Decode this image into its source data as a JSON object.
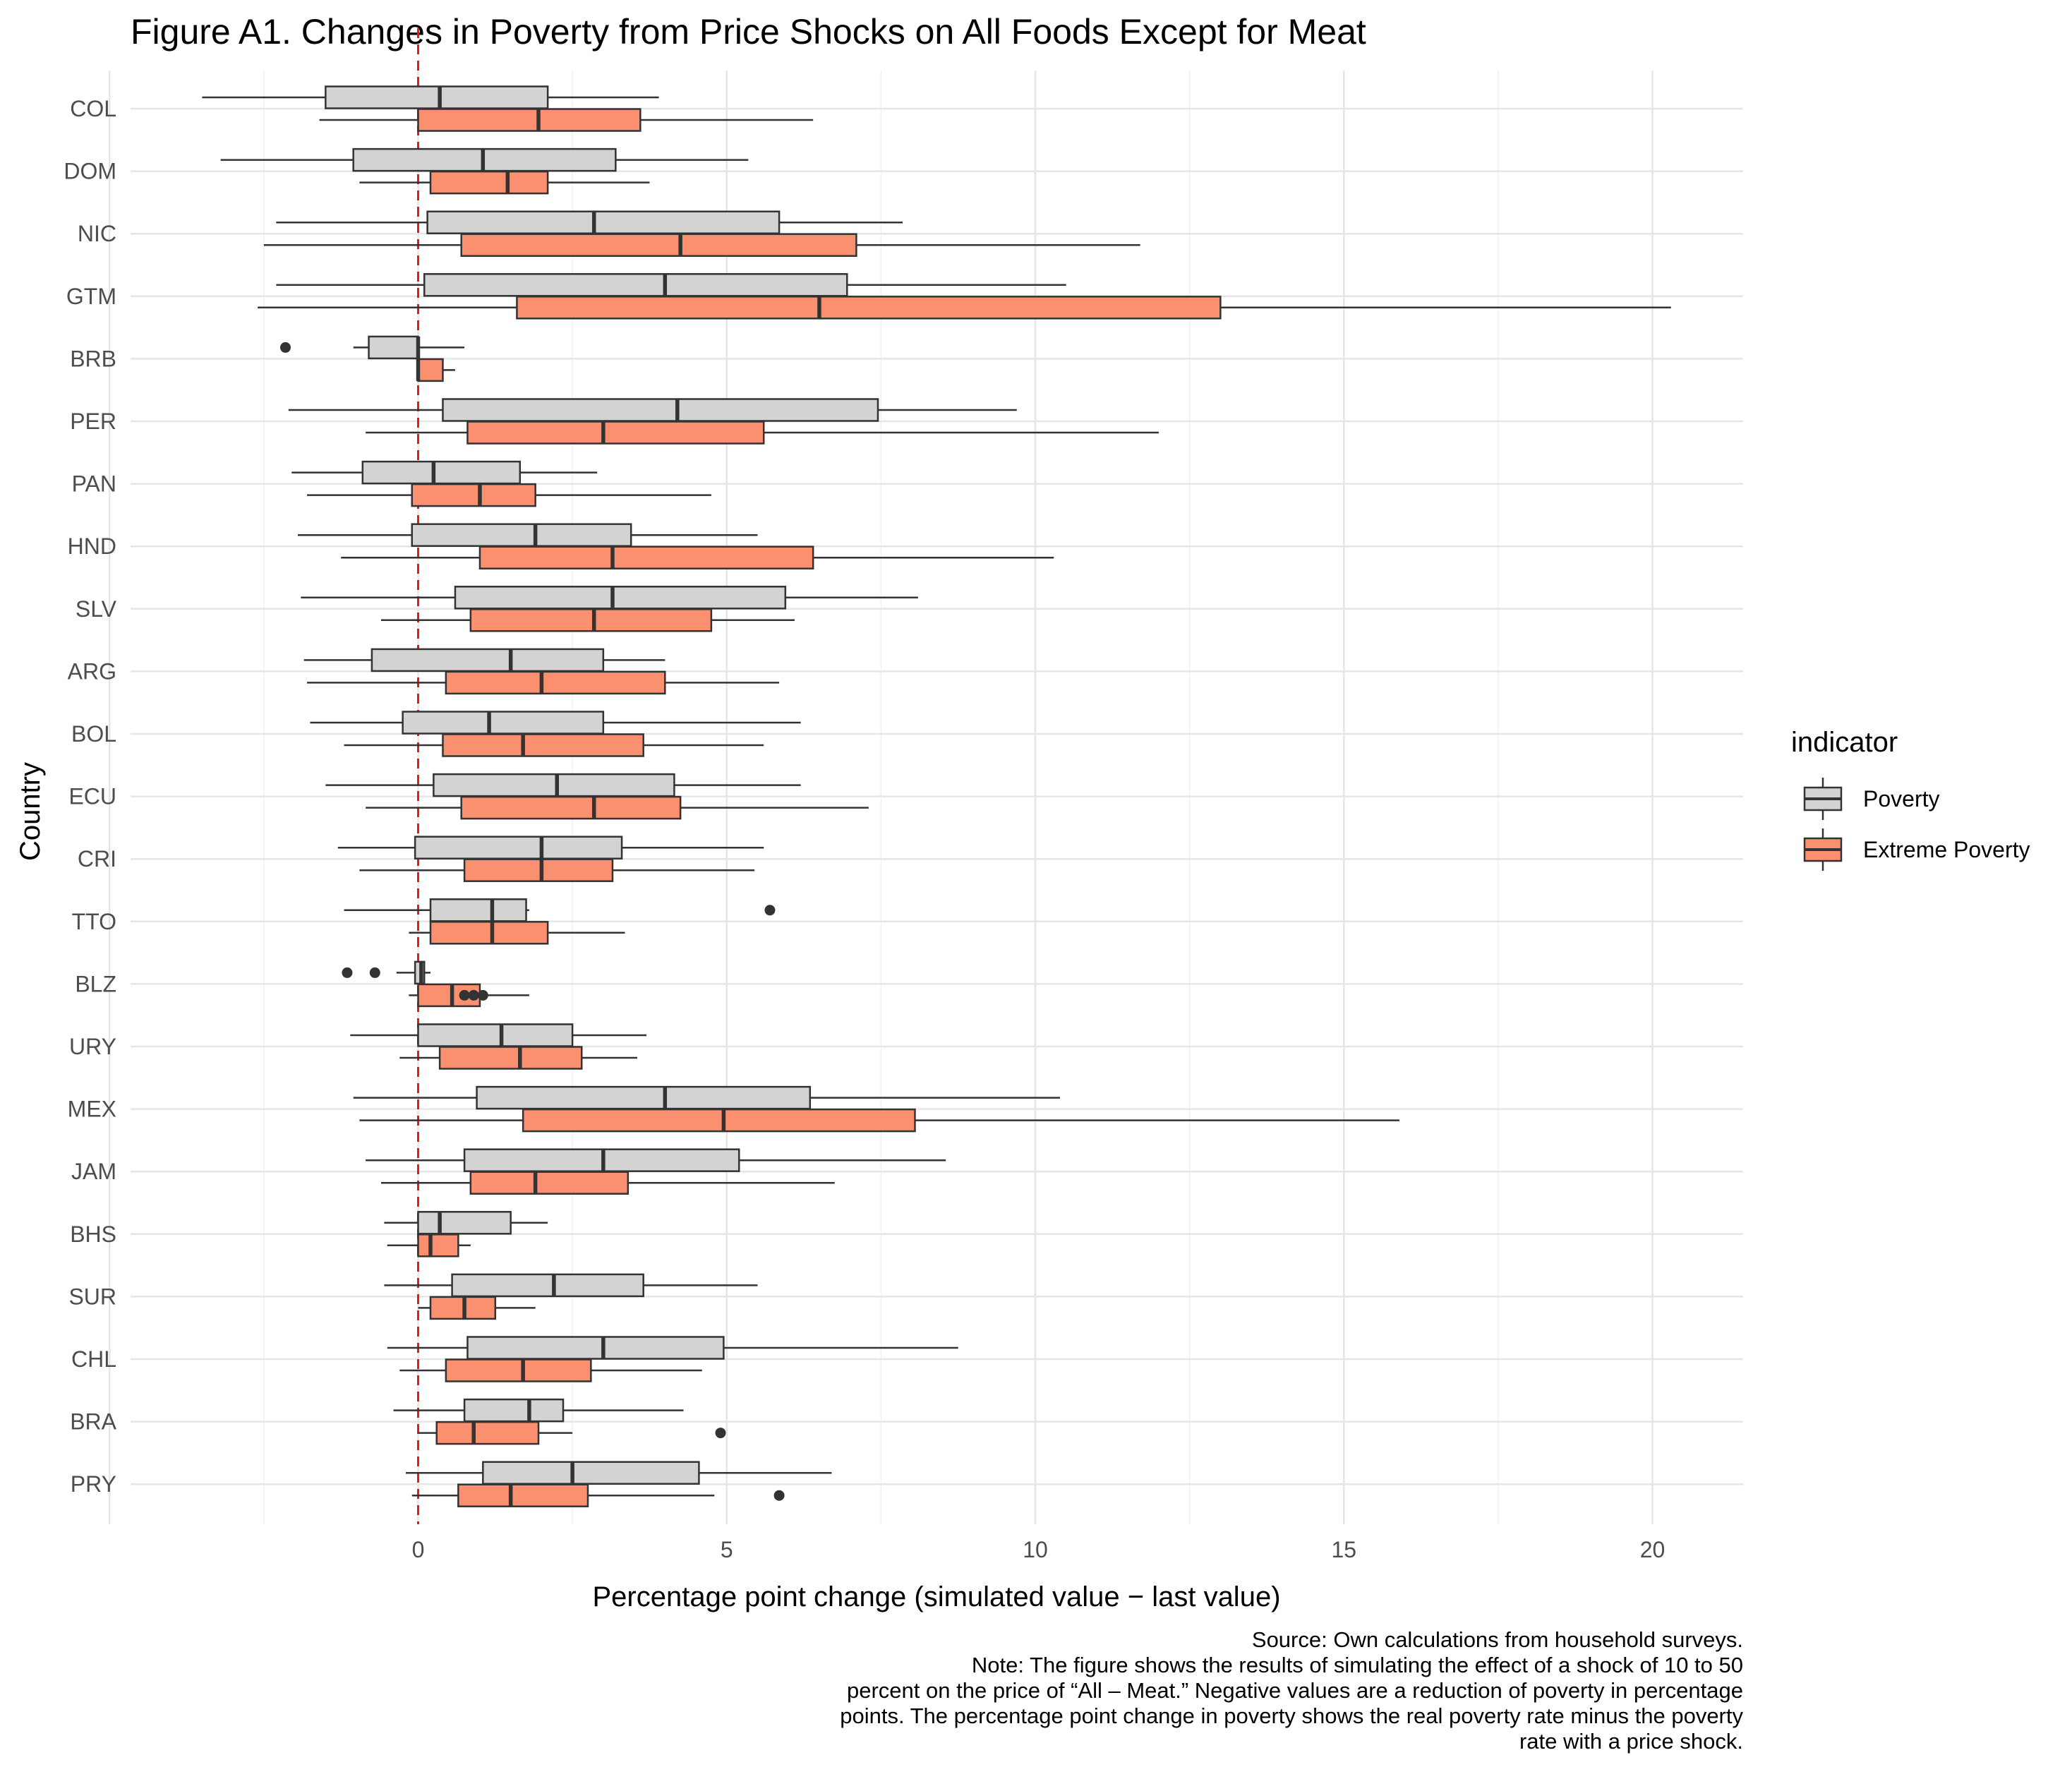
{
  "chart_data": {
    "type": "boxplot",
    "orientation": "horizontal",
    "title": "Figure A1. Changes in Poverty from Price Shocks on All Foods Except for Meat",
    "xlabel": "Percentage point change (simulated value − last value)",
    "ylabel": "Country",
    "xlim": [
      -9.3,
      21.5
    ],
    "xticks": [
      0,
      5,
      10,
      15,
      20
    ],
    "grid": true,
    "reference_line": {
      "x": 0,
      "color": "#e41a1c",
      "style": "dashed"
    },
    "legend": {
      "title": "indicator",
      "position": "right",
      "entries": [
        {
          "name": "Poverty",
          "color": "#d3d3d3"
        },
        {
          "name": "Extreme Poverty",
          "color": "#fa9070"
        }
      ]
    },
    "categories": [
      "COL",
      "DOM",
      "NIC",
      "GTM",
      "BRB",
      "PER",
      "PAN",
      "HND",
      "SLV",
      "ARG",
      "BOL",
      "ECU",
      "CRI",
      "TTO",
      "BLZ",
      "URY",
      "MEX",
      "JAM",
      "BHS",
      "SUR",
      "CHL",
      "BRA",
      "PRY"
    ],
    "series": [
      {
        "name": "Poverty",
        "boxes": [
          {
            "min": -3.5,
            "q1": -1.5,
            "median": 0.35,
            "q3": 2.1,
            "max": 3.9,
            "outliers": []
          },
          {
            "min": -3.2,
            "q1": -1.05,
            "median": 1.05,
            "q3": 3.2,
            "max": 5.35,
            "outliers": []
          },
          {
            "min": -2.3,
            "q1": 0.15,
            "median": 2.85,
            "q3": 5.85,
            "max": 7.85,
            "outliers": []
          },
          {
            "min": -2.3,
            "q1": 0.1,
            "median": 4.0,
            "q3": 6.95,
            "max": 10.5,
            "outliers": []
          },
          {
            "min": -1.05,
            "q1": -0.8,
            "median": 0.0,
            "q3": 0.0,
            "max": 0.75,
            "outliers": [
              -2.15
            ]
          },
          {
            "min": -2.1,
            "q1": 0.4,
            "median": 4.2,
            "q3": 7.45,
            "max": 9.7,
            "outliers": []
          },
          {
            "min": -2.05,
            "q1": -0.9,
            "median": 0.25,
            "q3": 1.65,
            "max": 2.9,
            "outliers": []
          },
          {
            "min": -1.95,
            "q1": -0.1,
            "median": 1.9,
            "q3": 3.45,
            "max": 5.5,
            "outliers": []
          },
          {
            "min": -1.9,
            "q1": 0.6,
            "median": 3.15,
            "q3": 5.95,
            "max": 8.1,
            "outliers": []
          },
          {
            "min": -1.85,
            "q1": -0.75,
            "median": 1.5,
            "q3": 3.0,
            "max": 4.0,
            "outliers": []
          },
          {
            "min": -1.75,
            "q1": -0.25,
            "median": 1.15,
            "q3": 3.0,
            "max": 6.2,
            "outliers": []
          },
          {
            "min": -1.5,
            "q1": 0.25,
            "median": 2.25,
            "q3": 4.15,
            "max": 6.2,
            "outliers": []
          },
          {
            "min": -1.3,
            "q1": -0.05,
            "median": 2.0,
            "q3": 3.3,
            "max": 5.6,
            "outliers": []
          },
          {
            "min": -1.2,
            "q1": 0.2,
            "median": 1.2,
            "q3": 1.75,
            "max": 1.8,
            "outliers": [
              5.7
            ]
          },
          {
            "min": -0.35,
            "q1": -0.05,
            "median": 0.05,
            "q3": 0.1,
            "max": 0.2,
            "outliers": [
              -1.15,
              -0.7
            ]
          },
          {
            "min": -1.1,
            "q1": 0.0,
            "median": 1.35,
            "q3": 2.5,
            "max": 3.7,
            "outliers": []
          },
          {
            "min": -1.05,
            "q1": 0.95,
            "median": 4.0,
            "q3": 6.35,
            "max": 10.4,
            "outliers": []
          },
          {
            "min": -0.85,
            "q1": 0.75,
            "median": 3.0,
            "q3": 5.2,
            "max": 8.55,
            "outliers": []
          },
          {
            "min": -0.55,
            "q1": 0.0,
            "median": 0.35,
            "q3": 1.5,
            "max": 2.1,
            "outliers": []
          },
          {
            "min": -0.55,
            "q1": 0.55,
            "median": 2.2,
            "q3": 3.65,
            "max": 5.5,
            "outliers": []
          },
          {
            "min": -0.5,
            "q1": 0.8,
            "median": 3.0,
            "q3": 4.95,
            "max": 8.75,
            "outliers": []
          },
          {
            "min": -0.4,
            "q1": 0.75,
            "median": 1.8,
            "q3": 2.35,
            "max": 4.3,
            "outliers": []
          },
          {
            "min": -0.2,
            "q1": 1.05,
            "median": 2.5,
            "q3": 4.55,
            "max": 6.7,
            "outliers": []
          }
        ]
      },
      {
        "name": "Extreme Poverty",
        "boxes": [
          {
            "min": -1.6,
            "q1": 0.0,
            "median": 1.95,
            "q3": 3.6,
            "max": 6.4,
            "outliers": []
          },
          {
            "min": -0.95,
            "q1": 0.2,
            "median": 1.45,
            "q3": 2.1,
            "max": 3.75,
            "outliers": []
          },
          {
            "min": -2.5,
            "q1": 0.7,
            "median": 4.25,
            "q3": 7.1,
            "max": 11.7,
            "outliers": []
          },
          {
            "min": -2.6,
            "q1": 1.6,
            "median": 6.5,
            "q3": 13.0,
            "max": 20.3,
            "outliers": []
          },
          {
            "min": 0.0,
            "q1": 0.0,
            "median": 0.0,
            "q3": 0.4,
            "max": 0.6,
            "outliers": []
          },
          {
            "min": -0.85,
            "q1": 0.8,
            "median": 3.0,
            "q3": 5.6,
            "max": 12.0,
            "outliers": []
          },
          {
            "min": -1.8,
            "q1": -0.1,
            "median": 1.0,
            "q3": 1.9,
            "max": 4.75,
            "outliers": []
          },
          {
            "min": -1.25,
            "q1": 1.0,
            "median": 3.15,
            "q3": 6.4,
            "max": 10.3,
            "outliers": []
          },
          {
            "min": -0.6,
            "q1": 0.85,
            "median": 2.85,
            "q3": 4.75,
            "max": 6.1,
            "outliers": []
          },
          {
            "min": -1.8,
            "q1": 0.45,
            "median": 2.0,
            "q3": 4.0,
            "max": 5.85,
            "outliers": []
          },
          {
            "min": -1.2,
            "q1": 0.4,
            "median": 1.7,
            "q3": 3.65,
            "max": 5.6,
            "outliers": []
          },
          {
            "min": -0.85,
            "q1": 0.7,
            "median": 2.85,
            "q3": 4.25,
            "max": 7.3,
            "outliers": []
          },
          {
            "min": -0.95,
            "q1": 0.75,
            "median": 2.0,
            "q3": 3.15,
            "max": 5.45,
            "outliers": []
          },
          {
            "min": -0.15,
            "q1": 0.2,
            "median": 1.2,
            "q3": 2.1,
            "max": 3.35,
            "outliers": []
          },
          {
            "min": -0.15,
            "q1": 0.0,
            "median": 0.55,
            "q3": 1.0,
            "max": 1.8,
            "outliers": [
              0.75,
              0.9,
              1.05
            ]
          },
          {
            "min": -0.3,
            "q1": 0.35,
            "median": 1.65,
            "q3": 2.65,
            "max": 3.55,
            "outliers": []
          },
          {
            "min": -0.95,
            "q1": 1.7,
            "median": 4.95,
            "q3": 8.05,
            "max": 15.9,
            "outliers": []
          },
          {
            "min": -0.6,
            "q1": 0.85,
            "median": 1.9,
            "q3": 3.4,
            "max": 6.75,
            "outliers": []
          },
          {
            "min": -0.5,
            "q1": 0.0,
            "median": 0.2,
            "q3": 0.65,
            "max": 0.85,
            "outliers": []
          },
          {
            "min": 0.0,
            "q1": 0.2,
            "median": 0.75,
            "q3": 1.25,
            "max": 1.9,
            "outliers": []
          },
          {
            "min": -0.3,
            "q1": 0.45,
            "median": 1.7,
            "q3": 2.8,
            "max": 4.6,
            "outliers": []
          },
          {
            "min": 0.0,
            "q1": 0.3,
            "median": 0.9,
            "q3": 1.95,
            "max": 2.5,
            "outliers": [
              4.9
            ]
          },
          {
            "min": -0.1,
            "q1": 0.65,
            "median": 1.5,
            "q3": 2.75,
            "max": 4.8,
            "outliers": [
              5.85
            ]
          }
        ]
      }
    ],
    "caption": [
      "Source: Own calculations from household surveys.",
      "Note: The figure shows the results of simulating the effect of a shock of 10 to 50",
      "percent on the price of “All – Meat.” Negative values are a reduction of poverty in percentage",
      "points. The percentage point change in poverty shows the real poverty rate minus the poverty",
      "rate with a price shock."
    ]
  }
}
